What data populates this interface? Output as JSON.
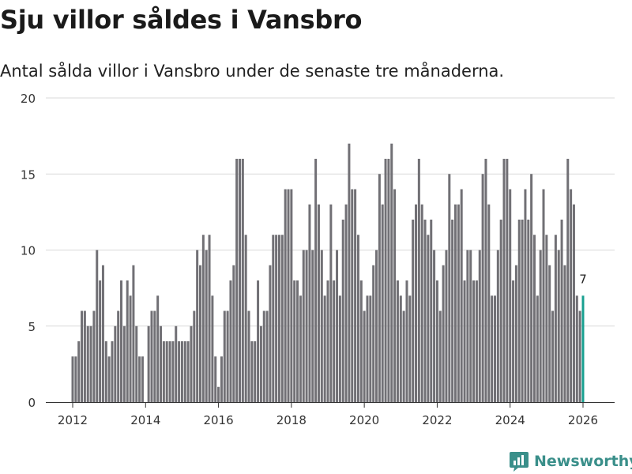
{
  "title": "Sju villor såldes i Vansbro",
  "subtitle": "Antal sålda villor i Vansbro under de senaste tre månaderna.",
  "brand": "Newsworthy",
  "colors": {
    "bar": "#717075",
    "highlight": "#18a090",
    "grid": "#d9d9d9",
    "logo": "#3a8f8a"
  },
  "chart_data": {
    "type": "bar",
    "title": "Sju villor såldes i Vansbro",
    "xlabel": "",
    "ylabel": "",
    "ylim": [
      0,
      20
    ],
    "yticks": [
      0,
      5,
      10,
      15,
      20
    ],
    "xticks": [
      2012,
      2014,
      2016,
      2018,
      2020,
      2022,
      2024,
      2026
    ],
    "x_start": 2012.0,
    "x_step": 0.0833333,
    "highlight_label": "7",
    "values": [
      3,
      3,
      4,
      6,
      6,
      5,
      5,
      6,
      10,
      8,
      9,
      4,
      3,
      4,
      5,
      6,
      8,
      5,
      8,
      7,
      9,
      5,
      3,
      3,
      0,
      5,
      6,
      6,
      7,
      5,
      4,
      4,
      4,
      4,
      5,
      4,
      4,
      4,
      4,
      5,
      6,
      10,
      9,
      11,
      10,
      11,
      7,
      3,
      1,
      3,
      6,
      6,
      8,
      9,
      16,
      16,
      16,
      11,
      6,
      4,
      4,
      8,
      5,
      6,
      6,
      9,
      11,
      11,
      11,
      11,
      14,
      14,
      14,
      8,
      8,
      7,
      10,
      10,
      13,
      10,
      16,
      13,
      10,
      7,
      8,
      13,
      8,
      10,
      7,
      12,
      13,
      17,
      14,
      14,
      11,
      8,
      6,
      7,
      7,
      9,
      10,
      15,
      13,
      16,
      16,
      17,
      14,
      8,
      7,
      6,
      8,
      7,
      12,
      13,
      16,
      13,
      12,
      11,
      12,
      10,
      8,
      6,
      9,
      10,
      15,
      12,
      13,
      13,
      14,
      8,
      10,
      10,
      8,
      8,
      10,
      15,
      16,
      13,
      7,
      7,
      10,
      12,
      16,
      16,
      14,
      8,
      9,
      12,
      12,
      14,
      12,
      15,
      11,
      7,
      10,
      14,
      11,
      9,
      6,
      11,
      10,
      12,
      9,
      16,
      14,
      13,
      7,
      6,
      7
    ]
  }
}
